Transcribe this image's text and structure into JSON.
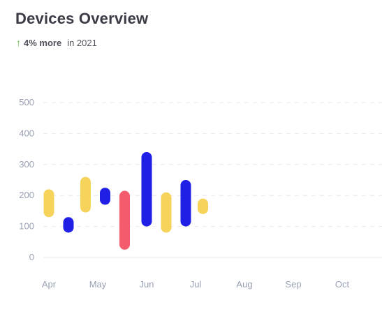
{
  "header": {
    "title": "Devices Overview",
    "change_pct": "4% more",
    "period": "in 2021"
  },
  "colors": {
    "yellow": "#f6d35a",
    "blue": "#1f1fe6",
    "red": "#f45c6e",
    "grid": "#e8e9ee",
    "tick": "#9aa0b4",
    "trend": "#67c23a"
  },
  "icons": {
    "trend": "arrow-up-icon"
  },
  "chart_data": {
    "type": "bar",
    "subtype": "floating-range",
    "ylim": [
      0,
      500
    ],
    "yticks": [
      0,
      100,
      200,
      300,
      400,
      500
    ],
    "xticks": [
      "Apr",
      "May",
      "Jun",
      "Jul",
      "Aug",
      "Sep",
      "Oct"
    ],
    "grid": true,
    "bars": [
      {
        "x": "Apr",
        "offset": 0.0,
        "low": 130,
        "high": 220,
        "color": "yellow"
      },
      {
        "x": "Apr",
        "offset": 0.4,
        "low": 80,
        "high": 130,
        "color": "blue"
      },
      {
        "x": "May",
        "offset": -0.25,
        "low": 145,
        "high": 260,
        "color": "yellow"
      },
      {
        "x": "May",
        "offset": 0.15,
        "low": 170,
        "high": 225,
        "color": "blue"
      },
      {
        "x": "May",
        "offset": 0.55,
        "low": 25,
        "high": 215,
        "color": "red"
      },
      {
        "x": "Jun",
        "offset": 0.0,
        "low": 100,
        "high": 340,
        "color": "blue"
      },
      {
        "x": "Jun",
        "offset": 0.4,
        "low": 80,
        "high": 210,
        "color": "yellow"
      },
      {
        "x": "Jul",
        "offset": -0.2,
        "low": 100,
        "high": 250,
        "color": "blue"
      },
      {
        "x": "Jul",
        "offset": 0.15,
        "low": 140,
        "high": 190,
        "color": "yellow"
      }
    ]
  }
}
